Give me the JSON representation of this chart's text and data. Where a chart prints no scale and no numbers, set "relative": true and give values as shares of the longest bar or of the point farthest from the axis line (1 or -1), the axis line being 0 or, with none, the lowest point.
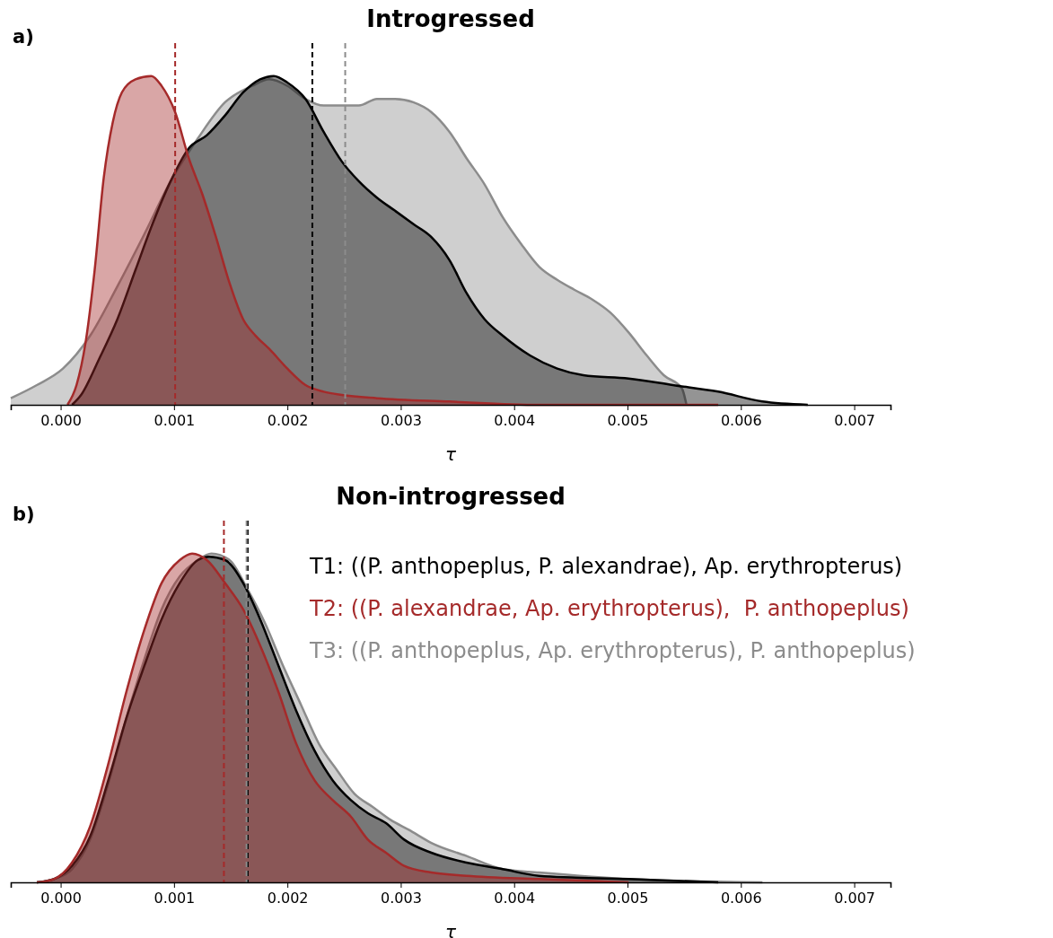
{
  "chart_data": [
    {
      "type": "area",
      "title": "Introgressed",
      "xlabel": "τ",
      "annotations": [
        "a)"
      ],
      "relative": true,
      "xlim": [
        -0.00044,
        0.00732
      ],
      "xticks": [
        {
          "value": 0,
          "label": "0.000"
        },
        {
          "value": 0.001,
          "label": "0.001"
        },
        {
          "value": 0.002,
          "label": "0.002"
        },
        {
          "value": 0.003,
          "label": "0.003"
        },
        {
          "value": 0.004,
          "label": "0.004"
        },
        {
          "value": 0.005,
          "label": "0.005"
        },
        {
          "value": 0.006,
          "label": "0.006"
        },
        {
          "value": 0.007,
          "label": "0.007"
        }
      ],
      "series": [
        {
          "color": "#8c8c8c",
          "x": [
            -0.00044,
            -0.00021,
            2e-05,
            0.00026,
            0.0005,
            0.00074,
            0.00097,
            0.00121,
            0.00145,
            0.00169,
            0.00184,
            0.002,
            0.00216,
            0.00232,
            0.00248,
            0.00263,
            0.00279,
            0.00295,
            0.00311,
            0.00327,
            0.00343,
            0.00358,
            0.00374,
            0.0039,
            0.00406,
            0.00422,
            0.00438,
            0.00453,
            0.00469,
            0.00485,
            0.00501,
            0.00517,
            0.00532,
            0.00548,
            0.00552
          ],
          "values": [
            0.02,
            0.06,
            0.11,
            0.21,
            0.36,
            0.52,
            0.68,
            0.81,
            0.92,
            0.97,
            0.99,
            0.97,
            0.93,
            0.91,
            0.91,
            0.91,
            0.93,
            0.93,
            0.92,
            0.89,
            0.83,
            0.75,
            0.67,
            0.57,
            0.49,
            0.42,
            0.38,
            0.35,
            0.32,
            0.28,
            0.22,
            0.15,
            0.09,
            0.05,
            0
          ]
        },
        {
          "color": "#000000",
          "x": [
            0.0001,
            0.00018,
            0.00034,
            0.0005,
            0.00066,
            0.00081,
            0.00097,
            0.00113,
            0.00129,
            0.00145,
            0.00161,
            0.00176,
            0.00188,
            0.002,
            0.00216,
            0.00232,
            0.00248,
            0.00263,
            0.00279,
            0.00295,
            0.00311,
            0.00327,
            0.00343,
            0.00358,
            0.00374,
            0.0039,
            0.00414,
            0.00438,
            0.00461,
            0.00501,
            0.0054,
            0.0058,
            0.00619,
            0.00659
          ],
          "values": [
            0,
            0.03,
            0.14,
            0.26,
            0.41,
            0.55,
            0.68,
            0.78,
            0.82,
            0.88,
            0.95,
            0.99,
            1.0,
            0.98,
            0.93,
            0.83,
            0.74,
            0.68,
            0.63,
            0.59,
            0.55,
            0.51,
            0.44,
            0.34,
            0.26,
            0.21,
            0.15,
            0.11,
            0.09,
            0.08,
            0.06,
            0.04,
            0.01,
            0
          ]
        },
        {
          "color": "#a52a2a",
          "x": [
            6e-05,
            0.00014,
            0.00022,
            0.0003,
            0.00038,
            0.00046,
            0.00054,
            0.00066,
            0.0008,
            0.00089,
            0.00101,
            0.00113,
            0.00125,
            0.00137,
            0.00149,
            0.00161,
            0.00172,
            0.00184,
            0.002,
            0.00216,
            0.00232,
            0.00248,
            0.00279,
            0.00343,
            0.00422,
            0.0058
          ],
          "values": [
            0,
            0.06,
            0.19,
            0.41,
            0.69,
            0.86,
            0.95,
            0.99,
            1.0,
            0.97,
            0.89,
            0.75,
            0.64,
            0.51,
            0.37,
            0.26,
            0.21,
            0.17,
            0.11,
            0.06,
            0.04,
            0.03,
            0.02,
            0.01,
            0,
            0
          ]
        }
      ],
      "ref_lines": [
        {
          "axis": "x",
          "value": 0.00101,
          "color": "#a52a2a",
          "line_style": "dashed"
        },
        {
          "axis": "x",
          "value": 0.00222,
          "color": "#000000",
          "line_style": "dashed"
        },
        {
          "axis": "x",
          "value": 0.00251,
          "color": "#8c8c8c",
          "line_style": "dashed"
        }
      ]
    },
    {
      "type": "area",
      "title": "Non-introgressed",
      "xlabel": "τ",
      "annotations": [
        "b)"
      ],
      "relative": true,
      "legend": "top right",
      "xlim": [
        -0.00044,
        0.00732
      ],
      "xticks": [
        {
          "value": 0,
          "label": "0.000"
        },
        {
          "value": 0.001,
          "label": "0.001"
        },
        {
          "value": 0.002,
          "label": "0.002"
        },
        {
          "value": 0.003,
          "label": "0.003"
        },
        {
          "value": 0.004,
          "label": "0.004"
        },
        {
          "value": 0.005,
          "label": "0.005"
        },
        {
          "value": 0.006,
          "label": "0.006"
        },
        {
          "value": 0.007,
          "label": "0.007"
        }
      ],
      "series": [
        {
          "name": "T3: ((P. anthopeplus, Ap. erythropterus), P. anthopeplus)",
          "color": "#8c8c8c",
          "x": [
            -0.00021,
            -6e-05,
            0.0001,
            0.00026,
            0.00042,
            0.00058,
            0.00074,
            0.00089,
            0.00105,
            0.00121,
            0.00133,
            0.00149,
            0.00165,
            0.0018,
            0.00196,
            0.00212,
            0.00228,
            0.00244,
            0.00259,
            0.00275,
            0.00291,
            0.00307,
            0.00327,
            0.00358,
            0.0039,
            0.00422,
            0.00501,
            0.00619
          ],
          "values": [
            0,
            0.01,
            0.04,
            0.13,
            0.3,
            0.5,
            0.68,
            0.83,
            0.93,
            0.98,
            1.0,
            0.98,
            0.89,
            0.79,
            0.66,
            0.54,
            0.42,
            0.34,
            0.27,
            0.23,
            0.19,
            0.16,
            0.12,
            0.08,
            0.04,
            0.03,
            0.01,
            0
          ]
        },
        {
          "name": "T1: ((P. anthopeplus, P. alexandrae), Ap. erythropterus)",
          "color": "#000000",
          "x": [
            -0.00021,
            -6e-05,
            0.0001,
            0.00026,
            0.00042,
            0.00058,
            0.00074,
            0.00089,
            0.00105,
            0.00121,
            0.00131,
            0.00145,
            0.00161,
            0.00176,
            0.00192,
            0.00208,
            0.00224,
            0.0024,
            0.00256,
            0.00271,
            0.00287,
            0.00303,
            0.00327,
            0.00358,
            0.0039,
            0.00422,
            0.00501,
            0.0058
          ],
          "values": [
            0,
            0.01,
            0.05,
            0.14,
            0.31,
            0.5,
            0.66,
            0.8,
            0.91,
            0.98,
            0.99,
            0.98,
            0.91,
            0.8,
            0.66,
            0.52,
            0.4,
            0.31,
            0.25,
            0.21,
            0.18,
            0.13,
            0.09,
            0.06,
            0.04,
            0.02,
            0.01,
            0
          ]
        },
        {
          "name": "T2: ((P. alexandrae, Ap. erythropterus),  P. anthopeplus)",
          "color": "#a52a2a",
          "x": [
            -0.00021,
            -6e-05,
            0.0001,
            0.00026,
            0.00042,
            0.00058,
            0.00074,
            0.00089,
            0.00105,
            0.00116,
            0.00129,
            0.00145,
            0.00161,
            0.00176,
            0.00192,
            0.00208,
            0.00224,
            0.0024,
            0.00256,
            0.00271,
            0.00287,
            0.00303,
            0.00327,
            0.00358,
            0.00422,
            0.00501
          ],
          "values": [
            0,
            0.01,
            0.06,
            0.17,
            0.36,
            0.58,
            0.77,
            0.91,
            0.98,
            1.0,
            0.98,
            0.91,
            0.83,
            0.72,
            0.58,
            0.42,
            0.31,
            0.25,
            0.2,
            0.13,
            0.09,
            0.05,
            0.03,
            0.02,
            0.01,
            0
          ]
        }
      ],
      "ref_lines": [
        {
          "axis": "x",
          "value": 0.00144,
          "color": "#a52a2a",
          "line_style": "dashed"
        },
        {
          "axis": "x",
          "value": 0.00165,
          "color": "#000000",
          "line_style": "dashed"
        },
        {
          "axis": "x",
          "value": 0.00164,
          "color": "#8c8c8c",
          "line_style": "dashed"
        }
      ]
    }
  ]
}
